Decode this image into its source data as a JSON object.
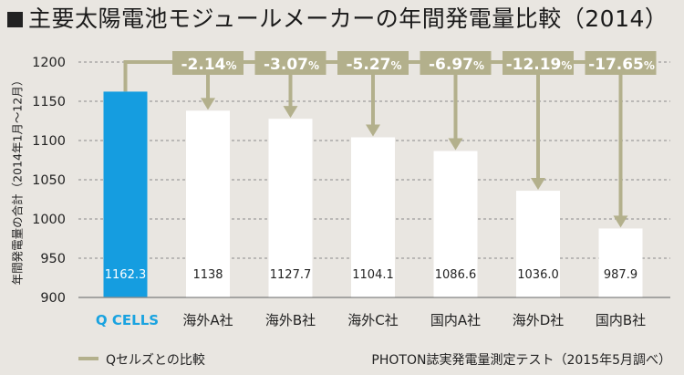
{
  "title": "主要太陽電池モジュールメーカーの年間発電量比較（2014）",
  "legend_label": "Qセルズとの比較",
  "source_note": "PHOTON誌実発電量測定テスト（2015年5月調べ）",
  "colors": {
    "background": "#e9e6e1",
    "highlight_bar": "#159de0",
    "bar": "#ffffff",
    "connector": "#b3b08c",
    "gridline": "#8a8a8a",
    "badge_text": "#ffffff",
    "qcells_logo": "#1aa3e0"
  },
  "chart_data": {
    "type": "bar",
    "title": "主要太陽電池モジュールメーカーの年間発電量比較（2014）",
    "ylabel": "年間発電量の合計（2014年1月〜12月）",
    "xlabel": "",
    "ylim": [
      900,
      1200
    ],
    "yticks": [
      "900",
      "950",
      "1000",
      "1050",
      "1100",
      "1150",
      "1200"
    ],
    "grid": "dashed horizontal",
    "categories": [
      "Q CELLS",
      "海外A社",
      "海外B社",
      "海外C社",
      "国内A社",
      "海外D社",
      "国内B社"
    ],
    "values": [
      1162.3,
      1138,
      1127.7,
      1104.1,
      1086.6,
      1036.0,
      987.9
    ],
    "value_labels": [
      "1162.3",
      "1138",
      "1127.7",
      "1104.1",
      "1086.6",
      "1036.0",
      "987.9"
    ],
    "comparison_labels": [
      "",
      "-2.14",
      "-3.07",
      "-5.27",
      "-6.97",
      "-12.19",
      "-17.65"
    ],
    "percent_symbol": "%",
    "legend": "bottom-left"
  }
}
